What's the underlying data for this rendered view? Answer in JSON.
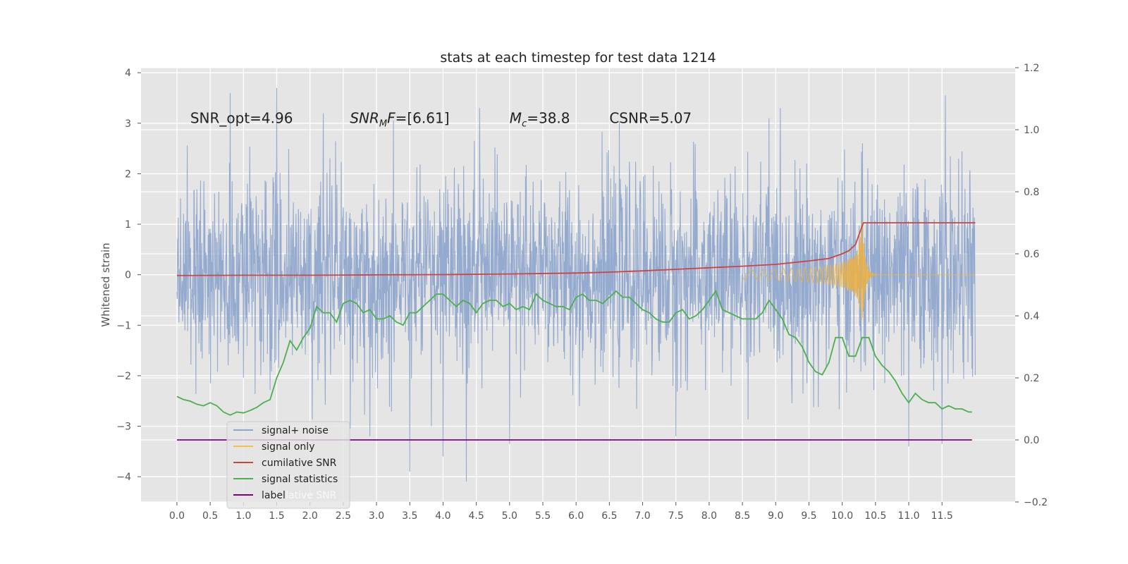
{
  "chart_data": {
    "type": "line",
    "title": "stats at each timestep for test data 1214",
    "ylabel": "Whitened strain",
    "xlabel": "",
    "xlim": [
      -0.54,
      12.6
    ],
    "ylim": [
      -4.5,
      4.1
    ],
    "ylim_right": [
      -0.2,
      1.2
    ],
    "grid": true,
    "x_ticks": [
      "0.0",
      "0.5",
      "1.0",
      "1.5",
      "2.0",
      "2.5",
      "3.0",
      "3.5",
      "4.0",
      "4.5",
      "5.0",
      "5.5",
      "6.0",
      "6.5",
      "7.0",
      "7.5",
      "8.0",
      "8.5",
      "9.0",
      "9.5",
      "10.0",
      "10.5",
      "11.0",
      "11.5"
    ],
    "y_ticks_left": [
      "4",
      "3",
      "2",
      "1",
      "0",
      "−1",
      "−2",
      "−3",
      "−4"
    ],
    "y_ticks_right": [
      "1.2",
      "1.0",
      "0.8",
      "0.6",
      "0.4",
      "0.2",
      "0.0",
      "−0.2"
    ],
    "annotations": [
      {
        "parts": [
          {
            "text": "SNR_opt=4.96",
            "italic": false
          }
        ]
      },
      {
        "parts": [
          {
            "text": "SNR",
            "italic": true
          },
          {
            "text": "M",
            "italic": true,
            "sub": true
          },
          {
            "text": "F",
            "italic": true
          },
          {
            "text": "=[6.61]",
            "italic": false
          }
        ]
      },
      {
        "parts": [
          {
            "text": "M",
            "italic": true
          },
          {
            "text": "c",
            "italic": true,
            "sub": true
          },
          {
            "text": "=38.8",
            "italic": false
          }
        ]
      },
      {
        "parts": [
          {
            "text": "CSNR=5.07",
            "italic": false
          }
        ]
      }
    ],
    "annotation_x": [
      0.2,
      2.6,
      5.0,
      6.5
    ],
    "annotation_y": 3.1,
    "legend": {
      "position": "lower-left",
      "entries": [
        {
          "label": "signal+ noise",
          "color": "#8fa6cc"
        },
        {
          "label": "signal only",
          "color": "#f0c24a"
        },
        {
          "label": "cumilative SNR",
          "color": "#cc4444"
        },
        {
          "label": "signal statistics",
          "color": "#4caf50"
        },
        {
          "label": "label",
          "color": "#800080"
        }
      ],
      "ghost_text": "cumilative SNR"
    },
    "series": [
      {
        "name": "signal+ noise",
        "axis": "left",
        "color": "#8fa6cc",
        "x_range": [
          0,
          12
        ],
        "sigma": 0.95,
        "spikes": [
          {
            "x": 0.8,
            "y": 3.6
          },
          {
            "x": 1.5,
            "y": 3.7
          },
          {
            "x": 2.2,
            "y": 3.2
          },
          {
            "x": 4.55,
            "y": 3.3
          },
          {
            "x": 8.9,
            "y": 3.1
          },
          {
            "x": 11.55,
            "y": 3.55
          },
          {
            "x": 3.5,
            "y": -3.9
          },
          {
            "x": 4.35,
            "y": -4.1
          },
          {
            "x": 4.0,
            "y": -3.6
          },
          {
            "x": 2.9,
            "y": -3.2
          },
          {
            "x": 7.5,
            "y": -3.2
          },
          {
            "x": 11.0,
            "y": -3.4
          },
          {
            "x": 11.5,
            "y": -3.35
          },
          {
            "x": 5.0,
            "y": -3.35
          }
        ]
      },
      {
        "name": "signal only",
        "axis": "left",
        "color": "#e8b04a",
        "x_range": [
          8.5,
          12
        ],
        "peak_x": 10.3,
        "peak_amp": 1.15
      },
      {
        "name": "cumilative SNR",
        "axis": "right",
        "color": "#cc4444",
        "x": [
          0,
          1,
          2,
          3,
          4,
          5,
          6,
          6.5,
          7,
          7.5,
          8,
          8.5,
          9,
          9.5,
          9.8,
          10.0,
          10.1,
          10.2,
          10.25,
          10.3,
          10.32,
          11,
          12
        ],
        "y": [
          0.53,
          0.531,
          0.531,
          0.532,
          0.533,
          0.535,
          0.538,
          0.541,
          0.545,
          0.55,
          0.555,
          0.56,
          0.566,
          0.577,
          0.585,
          0.6,
          0.61,
          0.63,
          0.66,
          0.69,
          0.7,
          0.7,
          0.7
        ]
      },
      {
        "name": "signal statistics",
        "axis": "right",
        "color": "#4caf50",
        "x": [
          0,
          0.1,
          0.2,
          0.3,
          0.4,
          0.5,
          0.6,
          0.7,
          0.8,
          0.9,
          1.0,
          1.1,
          1.2,
          1.3,
          1.4,
          1.5,
          1.6,
          1.7,
          1.8,
          1.9,
          2.0,
          2.1,
          2.2,
          2.3,
          2.4,
          2.5,
          2.6,
          2.7,
          2.8,
          2.9,
          3.0,
          3.1,
          3.2,
          3.3,
          3.4,
          3.5,
          3.6,
          3.7,
          3.8,
          3.9,
          4.0,
          4.1,
          4.2,
          4.3,
          4.4,
          4.5,
          4.6,
          4.7,
          4.8,
          4.9,
          5.0,
          5.1,
          5.2,
          5.3,
          5.4,
          5.5,
          5.6,
          5.7,
          5.8,
          5.9,
          6.0,
          6.1,
          6.2,
          6.3,
          6.4,
          6.5,
          6.6,
          6.7,
          6.8,
          6.9,
          7.0,
          7.1,
          7.2,
          7.3,
          7.4,
          7.5,
          7.6,
          7.7,
          7.8,
          7.9,
          8.0,
          8.1,
          8.2,
          8.3,
          8.4,
          8.5,
          8.6,
          8.7,
          8.8,
          8.9,
          9.0,
          9.1,
          9.2,
          9.3,
          9.4,
          9.5,
          9.6,
          9.7,
          9.8,
          9.9,
          10.0,
          10.1,
          10.2,
          10.3,
          10.4,
          10.5,
          10.6,
          10.7,
          10.8,
          10.9,
          11.0,
          11.1,
          11.2,
          11.3,
          11.4,
          11.5,
          11.6,
          11.7,
          11.8,
          11.9,
          11.95
        ],
        "y": [
          0.14,
          0.13,
          0.125,
          0.115,
          0.11,
          0.12,
          0.11,
          0.09,
          0.08,
          0.09,
          0.087,
          0.095,
          0.105,
          0.12,
          0.13,
          0.2,
          0.25,
          0.32,
          0.29,
          0.33,
          0.36,
          0.43,
          0.41,
          0.41,
          0.38,
          0.44,
          0.45,
          0.44,
          0.41,
          0.42,
          0.39,
          0.39,
          0.4,
          0.38,
          0.37,
          0.41,
          0.41,
          0.43,
          0.45,
          0.47,
          0.47,
          0.45,
          0.43,
          0.45,
          0.44,
          0.41,
          0.44,
          0.45,
          0.45,
          0.43,
          0.44,
          0.42,
          0.43,
          0.42,
          0.47,
          0.45,
          0.44,
          0.43,
          0.43,
          0.42,
          0.46,
          0.47,
          0.45,
          0.45,
          0.44,
          0.46,
          0.48,
          0.46,
          0.46,
          0.44,
          0.42,
          0.41,
          0.39,
          0.38,
          0.38,
          0.41,
          0.42,
          0.39,
          0.4,
          0.42,
          0.45,
          0.48,
          0.42,
          0.41,
          0.4,
          0.39,
          0.39,
          0.39,
          0.41,
          0.45,
          0.42,
          0.39,
          0.34,
          0.33,
          0.3,
          0.25,
          0.22,
          0.21,
          0.25,
          0.33,
          0.33,
          0.27,
          0.27,
          0.33,
          0.33,
          0.27,
          0.24,
          0.22,
          0.19,
          0.15,
          0.12,
          0.15,
          0.13,
          0.12,
          0.12,
          0.1,
          0.11,
          0.1,
          0.1,
          0.09,
          0.09
        ]
      },
      {
        "name": "label",
        "axis": "right",
        "color": "#800080",
        "x": [
          0,
          11.95
        ],
        "y": [
          0.0,
          0.0
        ]
      }
    ]
  }
}
